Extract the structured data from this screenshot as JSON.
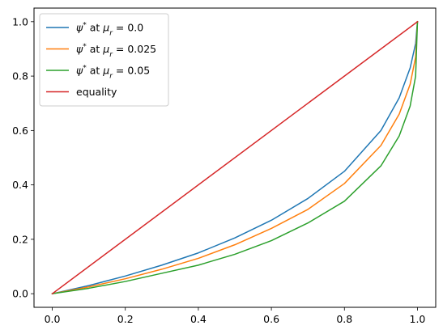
{
  "chart_data": {
    "type": "line",
    "title": "",
    "xlabel": "",
    "ylabel": "",
    "xlim": [
      -0.05,
      1.05
    ],
    "ylim": [
      -0.05,
      1.05
    ],
    "x_ticks": [
      "0.0",
      "0.2",
      "0.4",
      "0.6",
      "0.8",
      "1.0"
    ],
    "x_tick_values": [
      0.0,
      0.2,
      0.4,
      0.6,
      0.8,
      1.0
    ],
    "y_ticks": [
      "0.0",
      "0.2",
      "0.4",
      "0.6",
      "0.8",
      "1.0"
    ],
    "y_tick_values": [
      0.0,
      0.2,
      0.4,
      0.6,
      0.8,
      1.0
    ],
    "grid": false,
    "legend_position": "top-left",
    "series": [
      {
        "name": "ψ* at μ_r = 0.0",
        "legend_label": "$\\psi^*$ at $\\mu_r = 0.0$",
        "color": "#1f77b4",
        "x": [
          0.0,
          0.1,
          0.2,
          0.3,
          0.4,
          0.5,
          0.6,
          0.7,
          0.8,
          0.9,
          0.95,
          0.98,
          0.995,
          1.0
        ],
        "y": [
          0.0,
          0.03,
          0.065,
          0.105,
          0.15,
          0.205,
          0.27,
          0.35,
          0.45,
          0.6,
          0.72,
          0.83,
          0.92,
          1.0
        ]
      },
      {
        "name": "ψ* at μ_r = 0.025",
        "legend_label": "$\\psi^*$ at $\\mu_r = 0.025$",
        "color": "#ff7f0e",
        "x": [
          0.0,
          0.1,
          0.2,
          0.3,
          0.4,
          0.5,
          0.6,
          0.7,
          0.8,
          0.9,
          0.95,
          0.98,
          0.995,
          1.0
        ],
        "y": [
          0.0,
          0.025,
          0.055,
          0.09,
          0.13,
          0.18,
          0.24,
          0.31,
          0.405,
          0.545,
          0.66,
          0.77,
          0.87,
          1.0
        ]
      },
      {
        "name": "ψ* at μ_r = 0.05",
        "legend_label": "$\\psi^*$ at $\\mu_r = 0.05$",
        "color": "#2ca02c",
        "x": [
          0.0,
          0.1,
          0.2,
          0.3,
          0.4,
          0.5,
          0.6,
          0.7,
          0.8,
          0.9,
          0.95,
          0.98,
          0.995,
          1.0
        ],
        "y": [
          0.0,
          0.02,
          0.045,
          0.075,
          0.105,
          0.145,
          0.195,
          0.26,
          0.34,
          0.47,
          0.58,
          0.69,
          0.8,
          1.0
        ]
      },
      {
        "name": "equality",
        "legend_label": "equality",
        "color": "#d62728",
        "x": [
          0.0,
          1.0
        ],
        "y": [
          0.0,
          1.0
        ]
      }
    ]
  }
}
